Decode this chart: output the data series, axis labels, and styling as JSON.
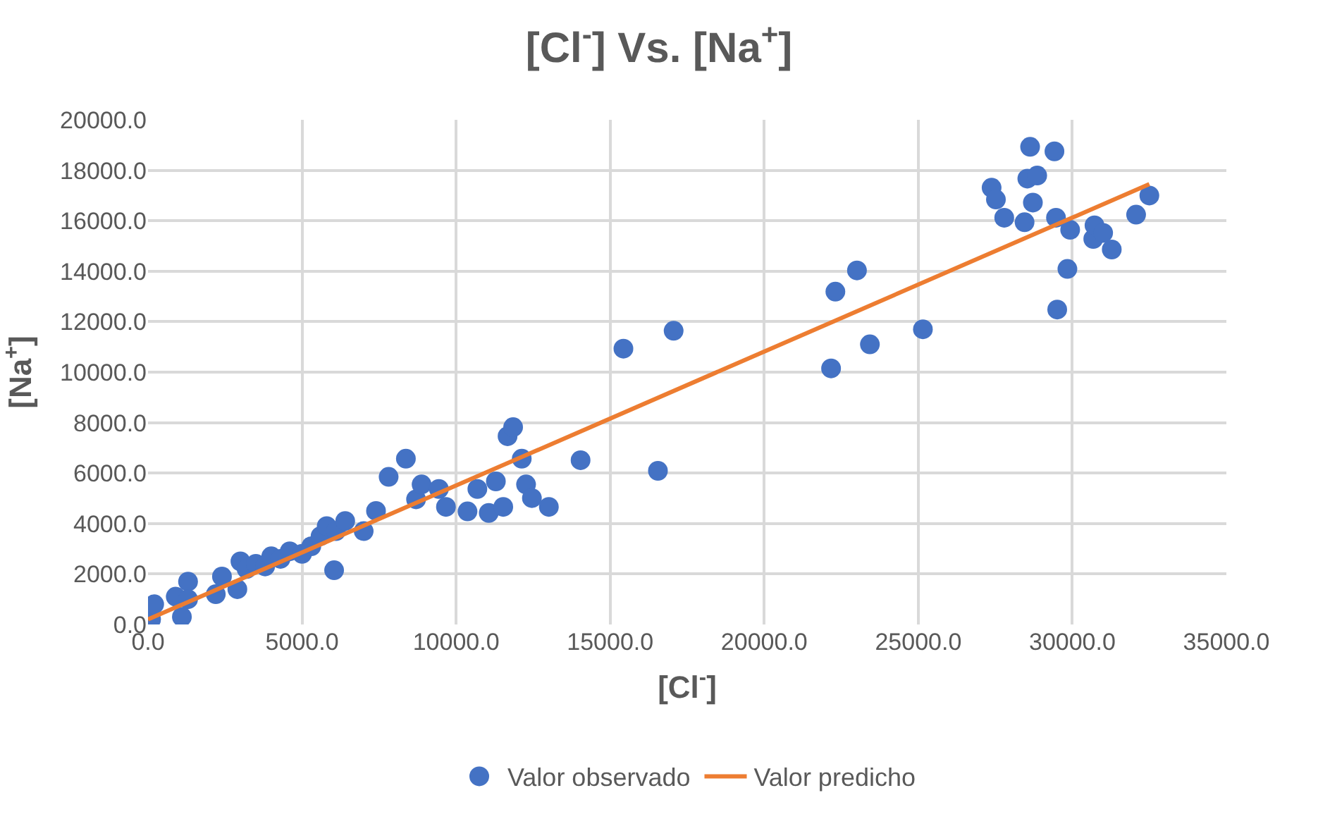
{
  "chart_data": {
    "type": "scatter",
    "title": "[Cl$^{-}$] Vs. [Na$^{+}$]",
    "xlabel": "[Cl$^{-}$]",
    "ylabel": "[Na$^{+}$]",
    "xlim": [
      0,
      35000
    ],
    "xticks": [
      {
        "value": 0,
        "label": "0.0"
      },
      {
        "value": 5000,
        "label": "5000.0"
      },
      {
        "value": 10000,
        "label": "10000.0"
      },
      {
        "value": 15000,
        "label": "15000.0"
      },
      {
        "value": 20000,
        "label": "20000.0"
      },
      {
        "value": 25000,
        "label": "25000.0"
      },
      {
        "value": 30000,
        "label": "30000.0"
      },
      {
        "value": 35000,
        "label": "35000.0"
      }
    ],
    "ylim": [
      0,
      20000
    ],
    "yticks": [
      {
        "value": 0,
        "label": "0.0"
      },
      {
        "value": 2000,
        "label": "2000.0"
      },
      {
        "value": 4000,
        "label": "4000.0"
      },
      {
        "value": 6000,
        "label": "6000.0"
      },
      {
        "value": 8000,
        "label": "8000.0"
      },
      {
        "value": 10000,
        "label": "10000.0"
      },
      {
        "value": 12000,
        "label": "12000.0"
      },
      {
        "value": 14000,
        "label": "14000.0"
      },
      {
        "value": 16000,
        "label": "16000.0"
      },
      {
        "value": 18000,
        "label": "18000.0"
      },
      {
        "value": 20000,
        "label": "20000.0"
      }
    ],
    "grid": true,
    "legend": "bottom",
    "series": [
      {
        "name": "Valor observado",
        "marker": "circle",
        "color": "#4472c4",
        "x": [
          100,
          200,
          900,
          1100,
          1300,
          2200,
          2400,
          3000,
          3200,
          3500,
          3800,
          4000,
          4300,
          4600,
          5000,
          5300,
          5600,
          5800,
          6100,
          6400,
          6040,
          7000,
          7400,
          7810,
          8370,
          8700,
          8880,
          9440,
          9670,
          10370,
          10690,
          11060,
          11290,
          11530,
          11670,
          11850,
          12130,
          12270,
          12460,
          13010,
          14040,
          15430,
          16550,
          17060,
          22170,
          22310,
          23010,
          23430,
          25150,
          27380,
          27520,
          27790,
          28450,
          28540,
          28630,
          28720,
          28860,
          29420,
          29470,
          29510,
          29840,
          29930,
          30680,
          30720,
          31000,
          31280,
          32070,
          32500,
          1300,
          2900
        ],
        "values": [
          200,
          800,
          1100,
          300,
          1700,
          1200,
          1900,
          2500,
          2200,
          2400,
          2300,
          2700,
          2600,
          2900,
          2800,
          3100,
          3500,
          3900,
          3700,
          4100,
          2150,
          3700,
          4500,
          5850,
          6570,
          4960,
          5550,
          5370,
          4660,
          4480,
          5370,
          4420,
          5670,
          4660,
          7460,
          7820,
          6570,
          5550,
          5010,
          4660,
          6510,
          10930,
          6090,
          11640,
          10150,
          13190,
          14030,
          11100,
          11700,
          17310,
          16840,
          16120,
          15940,
          17670,
          18930,
          16720,
          17790,
          18750,
          16120,
          12480,
          14090,
          15640,
          15280,
          15820,
          15520,
          14860,
          16240,
          17000,
          1000,
          1400
        ]
      },
      {
        "name": "Valor predicho",
        "type": "line",
        "marker": "none",
        "color": "#ed7d31",
        "x": [
          0,
          32500
        ],
        "values": [
          200,
          17450
        ]
      }
    ]
  }
}
